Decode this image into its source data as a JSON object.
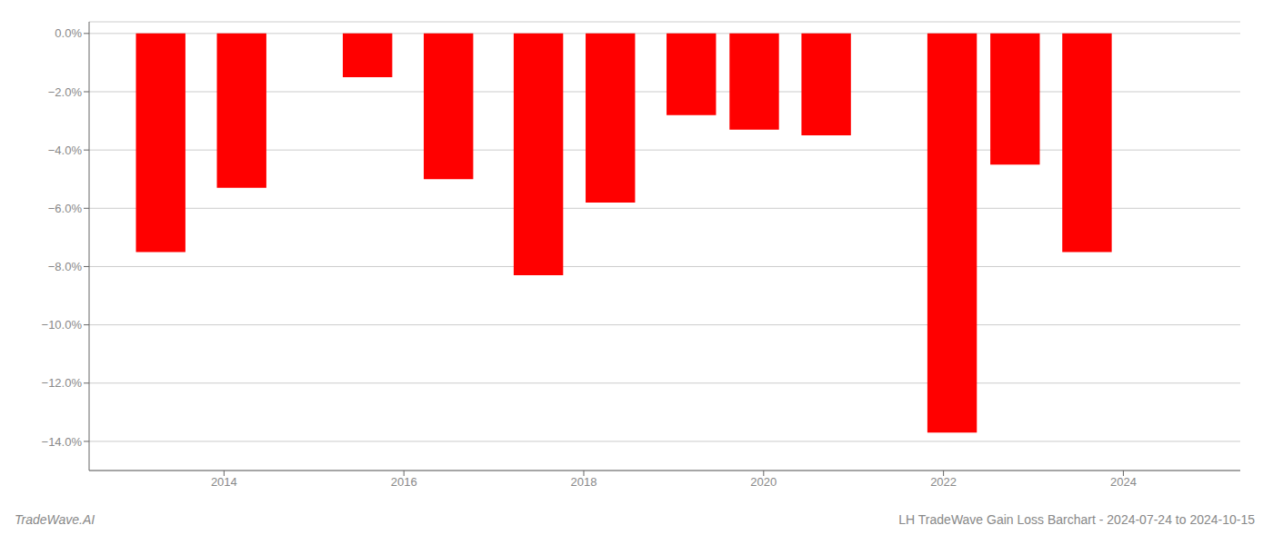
{
  "chart_data": {
    "type": "bar",
    "title": "LH TradeWave Gain Loss Barchart - 2024-07-24 to 2024-10-15",
    "annotations": [
      "TradeWave.AI"
    ],
    "x": [
      2013.3,
      2014.2,
      2015.6,
      2016.5,
      2017.5,
      2018.3,
      2019.2,
      2019.9,
      2020.7,
      2022.1,
      2022.8,
      2023.6
    ],
    "values": [
      -7.5,
      -5.3,
      -1.5,
      -5.0,
      -8.3,
      -5.8,
      -2.8,
      -3.3,
      -3.5,
      -13.7,
      -4.5,
      -7.5
    ],
    "color": "#ff0000",
    "xlim": [
      2012.5,
      2025.3
    ],
    "ylim": [
      -15.0,
      0.4
    ],
    "xticks": [
      2014,
      2016,
      2018,
      2020,
      2022,
      2024
    ],
    "yticks": [
      {
        "value": 0.0,
        "label": "0.0%"
      },
      {
        "value": -2.0,
        "label": "−2.0%"
      },
      {
        "value": -4.0,
        "label": "−4.0%"
      },
      {
        "value": -6.0,
        "label": "−6.0%"
      },
      {
        "value": -8.0,
        "label": "−8.0%"
      },
      {
        "value": -10.0,
        "label": "−10.0%"
      },
      {
        "value": -12.0,
        "label": "−12.0%"
      },
      {
        "value": -14.0,
        "label": "−14.0%"
      }
    ],
    "grid": true
  }
}
